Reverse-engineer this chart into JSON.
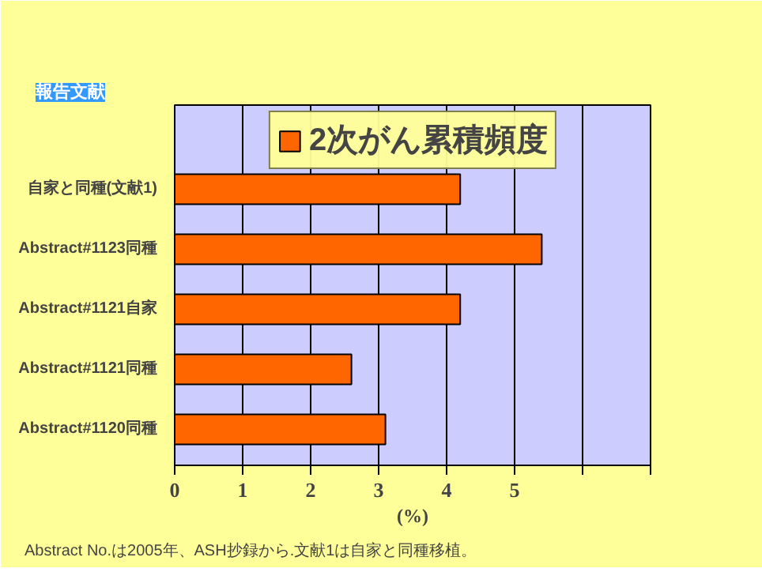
{
  "chart_data": {
    "type": "bar",
    "orientation": "horizontal",
    "ylabel": "報告文献",
    "xlabel": "(%)",
    "categories": [
      "自家と同種(文献1)",
      "Abstract#1123同種",
      "Abstract#1121自家",
      "Abstract#1121同種",
      "Abstract#1120同種"
    ],
    "series": [
      {
        "name": "2次がん累積頻度",
        "color": "#ff6600",
        "values": [
          4.2,
          5.4,
          4.2,
          2.6,
          3.1
        ]
      }
    ],
    "xlim": [
      0,
      7
    ],
    "xticks": [
      0,
      1,
      2,
      3,
      4,
      5,
      {
        "value": 6,
        "label": null
      },
      {
        "value": 7,
        "label": null
      }
    ],
    "grid": "x",
    "legend": "top",
    "annotations": [
      "Abstract No.は2005年、ASH抄録から.文献1は自家と同種移植。"
    ]
  }
}
